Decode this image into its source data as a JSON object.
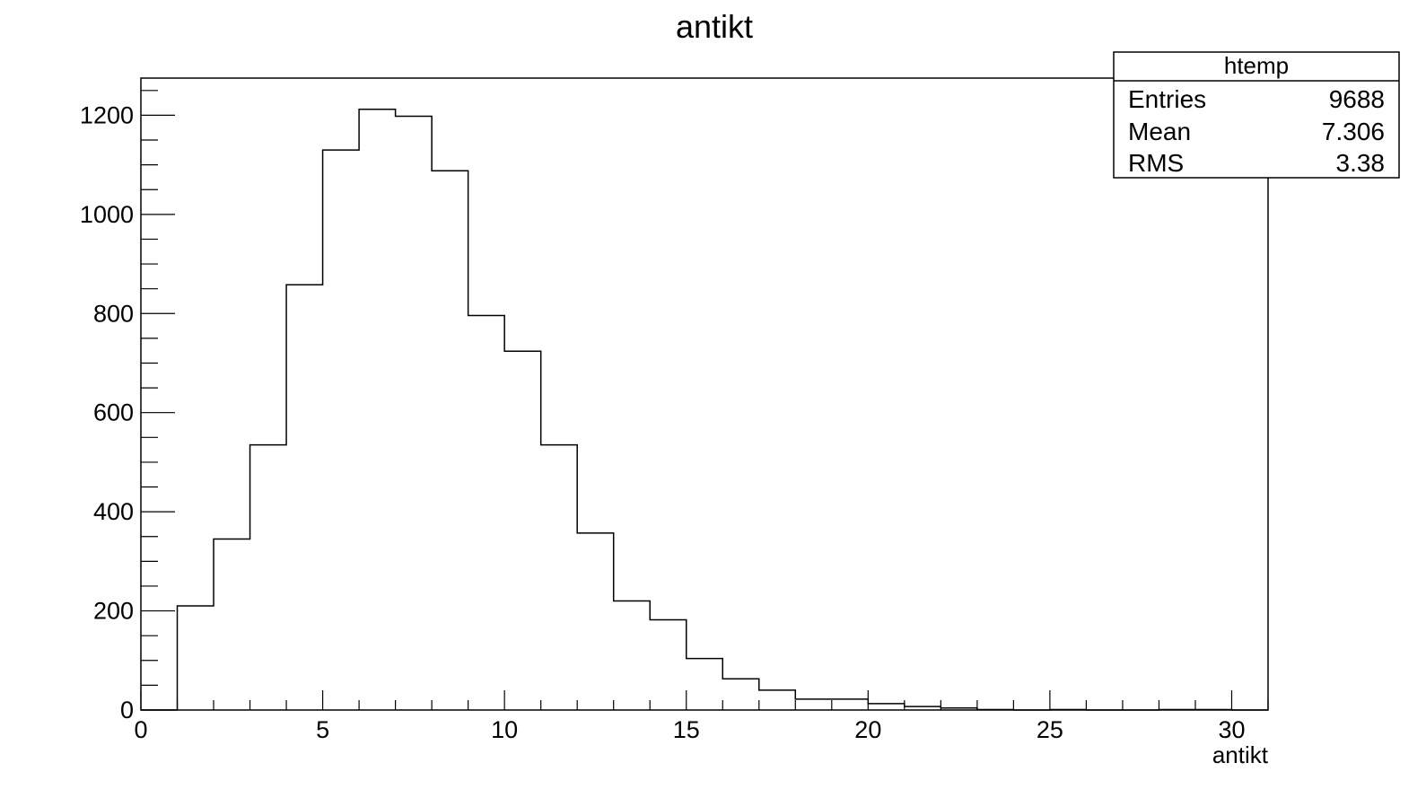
{
  "chart_data": {
    "type": "bar",
    "title": "antikt",
    "xlabel": "antikt",
    "ylabel": "",
    "xlim": [
      0,
      31
    ],
    "ylim": [
      0,
      1275
    ],
    "x_ticks": [
      0,
      5,
      10,
      15,
      20,
      25,
      30
    ],
    "y_ticks": [
      0,
      200,
      400,
      600,
      800,
      1000,
      1200
    ],
    "bin_edges": [
      0,
      1,
      2,
      3,
      4,
      5,
      6,
      7,
      8,
      9,
      10,
      11,
      12,
      13,
      14,
      15,
      16,
      17,
      18,
      19,
      20,
      21,
      22,
      23,
      24,
      25,
      26,
      27,
      28,
      29,
      30,
      31
    ],
    "values": [
      0,
      210,
      345,
      535,
      858,
      1130,
      1212,
      1198,
      1088,
      796,
      724,
      535,
      357,
      220,
      182,
      104,
      63,
      40,
      22,
      22,
      13,
      7,
      4,
      1,
      0,
      1,
      0,
      0,
      1,
      1,
      0
    ],
    "stats_box": {
      "title": "htemp",
      "rows": [
        {
          "label": "Entries",
          "value": "9688"
        },
        {
          "label": "Mean",
          "value": "7.306"
        },
        {
          "label": "RMS",
          "value": "3.38"
        }
      ]
    }
  }
}
